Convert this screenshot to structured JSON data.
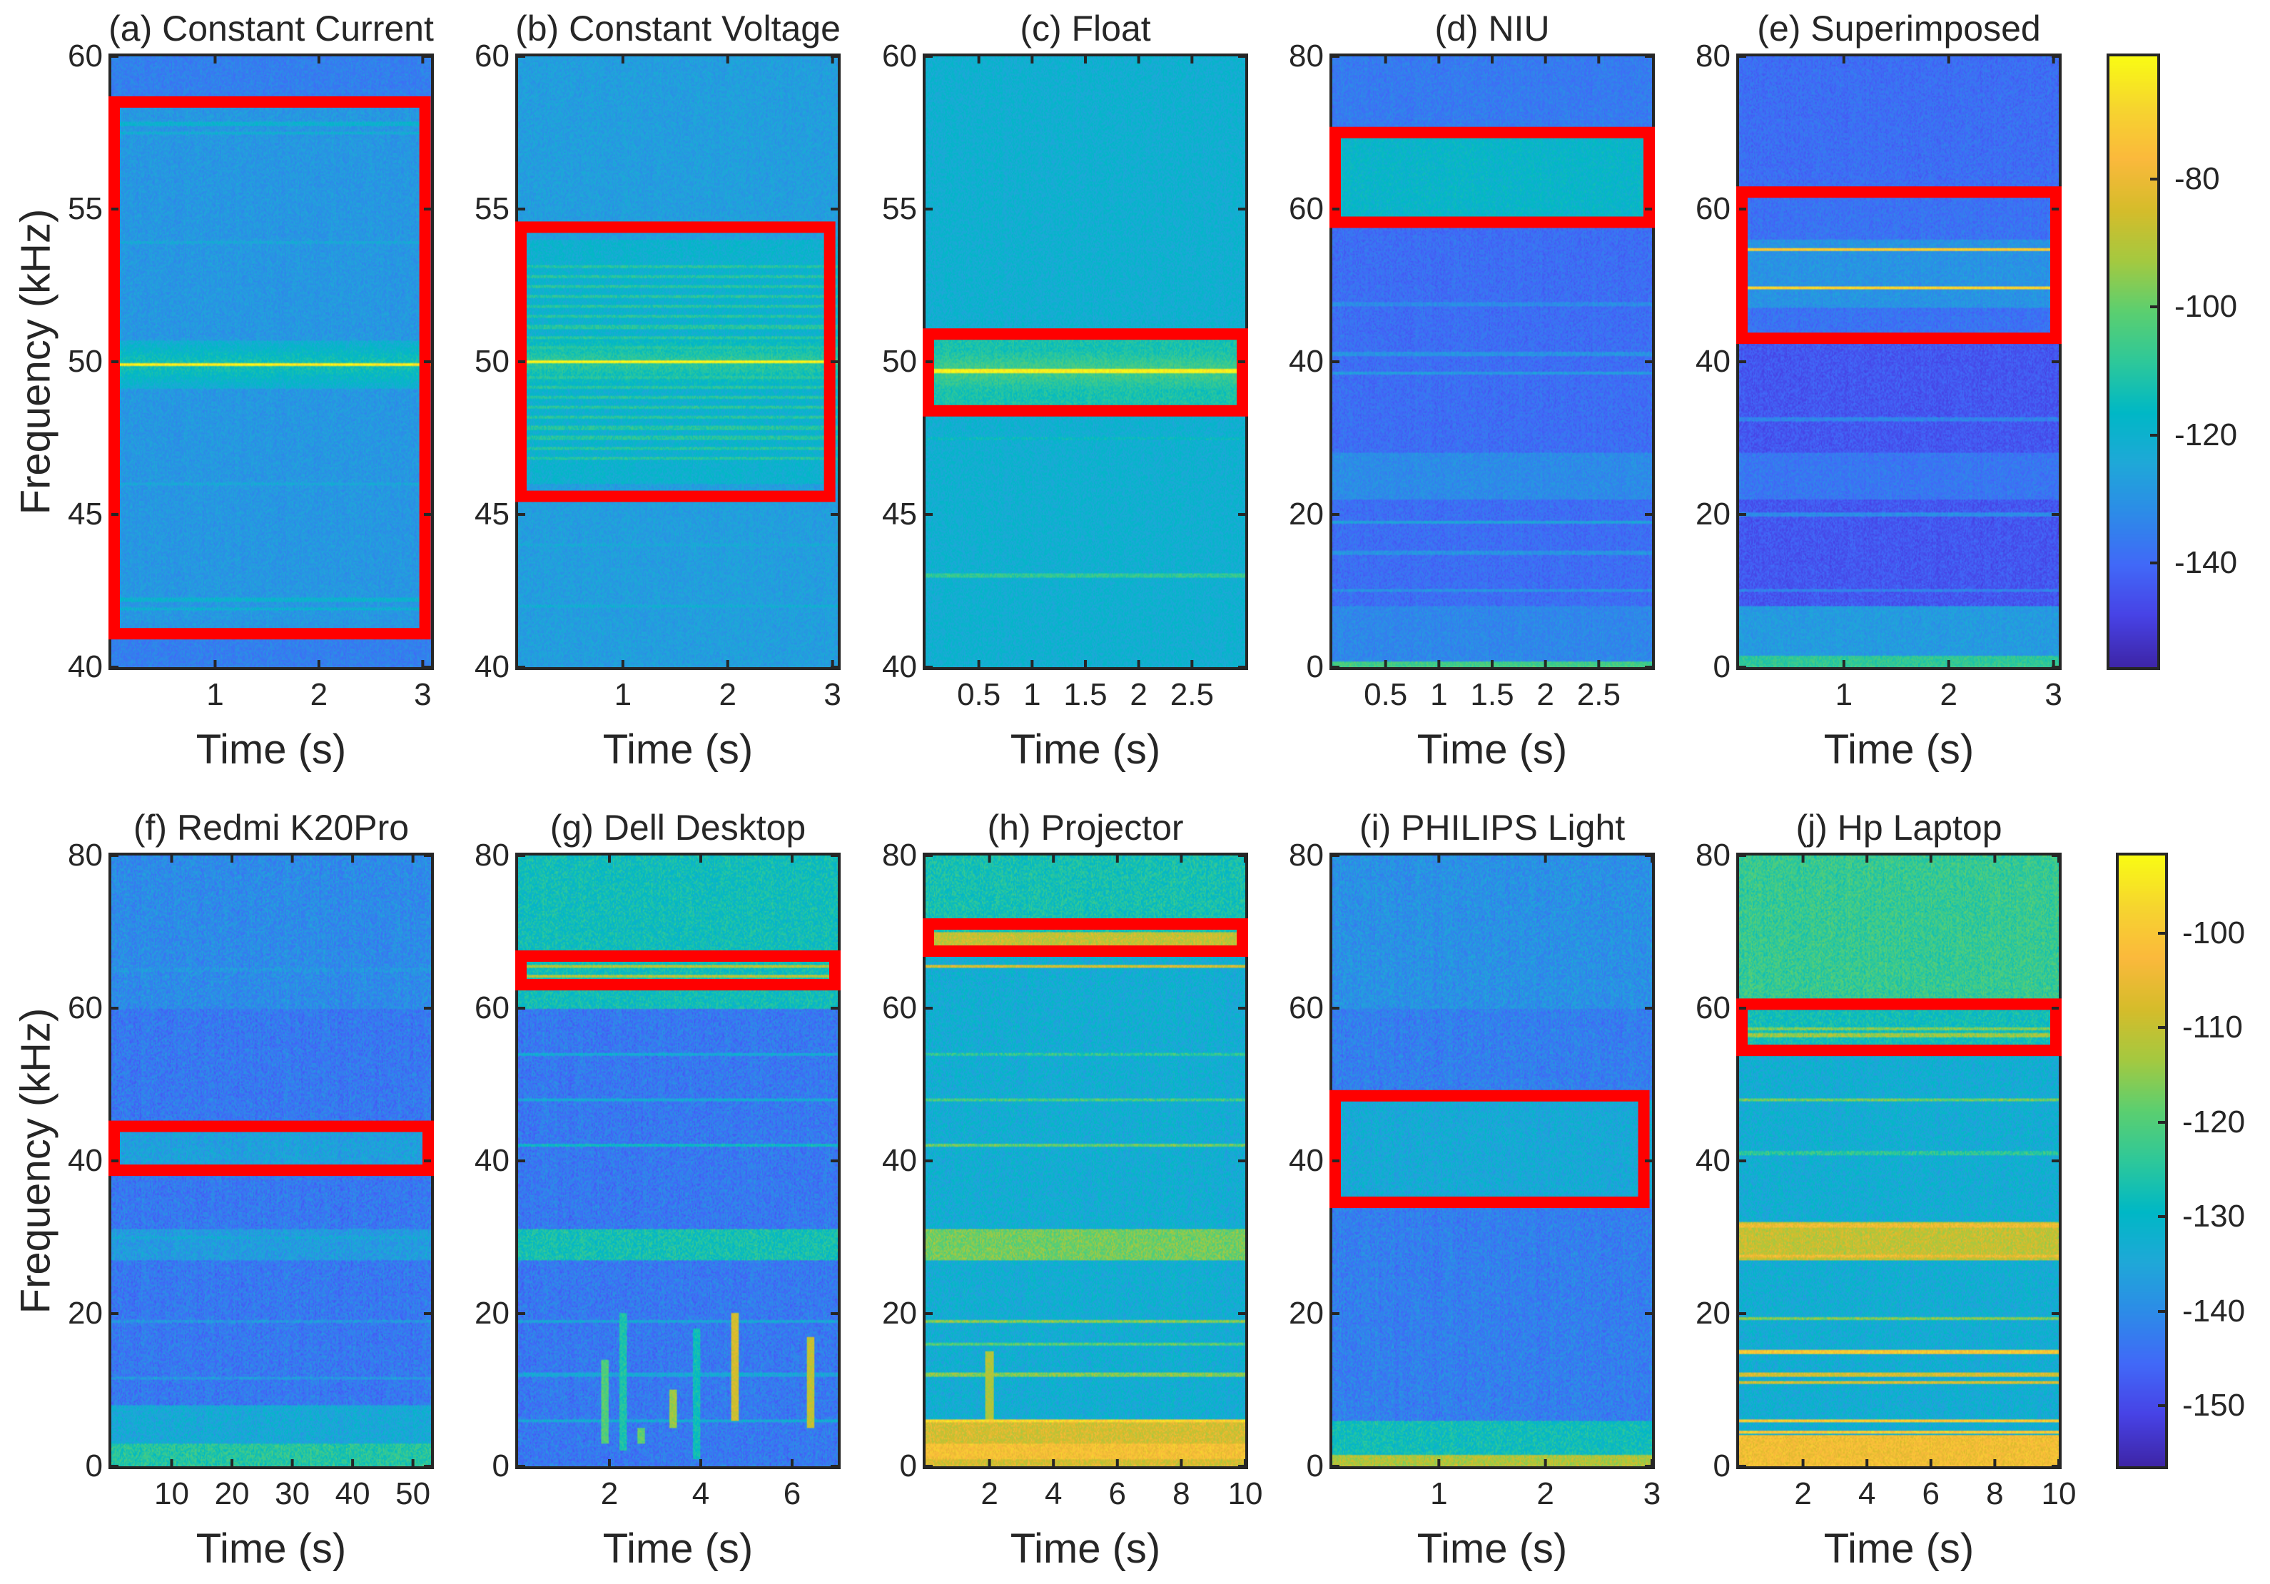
{
  "chart_data": [
    {
      "id": "a",
      "type": "heatmap",
      "title": "(a) Constant Current",
      "xlabel": "Time (s)",
      "ylabel": "Frequency (kHz)",
      "xlim": [
        0,
        3.08
      ],
      "ylim": [
        40,
        60
      ],
      "xticks": [
        1,
        2,
        3
      ],
      "yticks": [
        40,
        45,
        50,
        55,
        60
      ],
      "colorbar": 0,
      "highlight_box": {
        "t": [
          0,
          3.05
        ],
        "f": [
          41.0,
          58.6
        ]
      },
      "background_db": -135,
      "bands": [
        {
          "f": [
            41,
            58.5
          ],
          "db": -129
        }
      ],
      "tones": [
        {
          "f": 49.9,
          "db": -64,
          "glow": -112
        },
        {
          "f": 57.8,
          "db": -120
        },
        {
          "f": 57.5,
          "db": -122
        },
        {
          "f": 53.9,
          "db": -124
        },
        {
          "f": 46,
          "db": -124
        },
        {
          "f": 42.2,
          "db": -120
        },
        {
          "f": 41.9,
          "db": -121
        }
      ]
    },
    {
      "id": "b",
      "type": "heatmap",
      "title": "(b) Constant Voltage",
      "xlabel": "Time (s)",
      "ylabel": "",
      "xlim": [
        0,
        3.05
      ],
      "ylim": [
        40,
        60
      ],
      "xticks": [
        1,
        2,
        3
      ],
      "yticks": [
        40,
        45,
        50,
        55,
        60
      ],
      "colorbar": 0,
      "highlight_box": {
        "t": [
          0,
          3.0
        ],
        "f": [
          45.5,
          54.5
        ]
      },
      "background_db": -127,
      "bands": [
        {
          "f": [
            46,
            54
          ],
          "db": -120
        }
      ],
      "comb": {
        "f": [
          46.8,
          53.3
        ],
        "step": 0.33,
        "db": -110
      },
      "tones": [
        {
          "f": 50.0,
          "db": -62,
          "glow": -108
        },
        {
          "f": 42,
          "db": -122
        },
        {
          "f": 44,
          "db": -124
        }
      ]
    },
    {
      "id": "c",
      "type": "heatmap",
      "title": "(c) Float",
      "xlabel": "Time (s)",
      "ylabel": "",
      "xlim": [
        0,
        3
      ],
      "ylim": [
        40,
        60
      ],
      "xticks": [
        0.5,
        1,
        1.5,
        2,
        2.5
      ],
      "yticks": [
        40,
        45,
        50,
        55,
        60
      ],
      "colorbar": 0,
      "highlight_box": {
        "t": [
          0,
          3.0
        ],
        "f": [
          48.3,
          51.0
        ]
      },
      "background_db": -121,
      "bands": [
        {
          "f": [
            48.5,
            51
          ],
          "db": -112
        }
      ],
      "tones": [
        {
          "f": 49.7,
          "db": -63,
          "glow": -104
        },
        {
          "f": 43,
          "db": -108
        },
        {
          "f": 47.5,
          "db": -116
        }
      ]
    },
    {
      "id": "d",
      "type": "heatmap",
      "title": "(d) NIU",
      "xlabel": "Time (s)",
      "ylabel": "",
      "xlim": [
        0,
        3
      ],
      "ylim": [
        0,
        80
      ],
      "xticks": [
        0.5,
        1,
        1.5,
        2,
        2.5
      ],
      "yticks": [
        0,
        20,
        40,
        60,
        80
      ],
      "colorbar": 0,
      "highlight_box": {
        "t": [
          0,
          3.0
        ],
        "f": [
          57.9,
          70.4
        ]
      },
      "background_db": -139,
      "bands": [
        {
          "f": [
            58,
            69.5
          ],
          "db": -118
        },
        {
          "f": [
            22,
            28
          ],
          "db": -132
        },
        {
          "f": [
            0,
            8
          ],
          "db": -133
        },
        {
          "f": [
            0,
            0.8
          ],
          "db": -105
        },
        {
          "f": [
            70,
            80
          ],
          "db": -136
        }
      ],
      "tones": [
        {
          "f": 19,
          "db": -126
        },
        {
          "f": 15,
          "db": -130
        },
        {
          "f": 41,
          "db": -130
        },
        {
          "f": 38.5,
          "db": -128
        },
        {
          "f": 10,
          "db": -130
        },
        {
          "f": 47.5,
          "db": -132
        }
      ]
    },
    {
      "id": "e",
      "type": "heatmap",
      "title": "(e) Superimposed",
      "xlabel": "Time (s)",
      "ylabel": "",
      "xlim": [
        0,
        3.05
      ],
      "ylim": [
        0,
        80
      ],
      "xticks": [
        1,
        2,
        3
      ],
      "yticks": [
        0,
        20,
        40,
        60,
        80
      ],
      "colorbar": 0,
      "highlight_box": {
        "t": [
          0,
          3.05
        ],
        "f": [
          42.7,
          62.6
        ]
      },
      "background_db": -144,
      "bands": [
        {
          "f": [
            62,
            80
          ],
          "db": -139
        },
        {
          "f": [
            43,
            62
          ],
          "db": -138
        },
        {
          "f": [
            47,
            56
          ],
          "db": -130
        },
        {
          "f": [
            22,
            28
          ],
          "db": -137
        },
        {
          "f": [
            0,
            8
          ],
          "db": -128
        },
        {
          "f": [
            0,
            1.5
          ],
          "db": -108
        }
      ],
      "tones": [
        {
          "f": 54.7,
          "db": -72
        },
        {
          "f": 49.7,
          "db": -70
        },
        {
          "f": 32.5,
          "db": -134
        },
        {
          "f": 20,
          "db": -132
        },
        {
          "f": 10,
          "db": -134
        }
      ]
    },
    {
      "id": "f",
      "type": "heatmap",
      "title": "(f) Redmi K20Pro",
      "xlabel": "Time (s)",
      "ylabel": "Frequency (kHz)",
      "xlim": [
        0,
        53
      ],
      "ylim": [
        0,
        80
      ],
      "xticks": [
        10,
        20,
        30,
        40,
        50
      ],
      "yticks": [
        0,
        20,
        40,
        60,
        80
      ],
      "colorbar": 1,
      "highlight_box": {
        "t": [
          0,
          53
        ],
        "f": [
          38.4,
          44.9
        ]
      },
      "background_db": -143,
      "bands": [
        {
          "f": [
            60,
            80
          ],
          "db": -140
        },
        {
          "f": [
            39,
            44
          ],
          "db": -136
        },
        {
          "f": [
            27,
            31
          ],
          "db": -137
        },
        {
          "f": [
            0,
            8
          ],
          "db": -134
        },
        {
          "f": [
            0,
            3
          ],
          "db": -125
        }
      ],
      "tones": [
        {
          "f": 65,
          "db": -138
        },
        {
          "f": 30,
          "db": -134
        },
        {
          "f": 19,
          "db": -138
        },
        {
          "f": 11.5,
          "db": -138
        },
        {
          "f": 6,
          "db": -134
        }
      ]
    },
    {
      "id": "g",
      "type": "heatmap",
      "title": "(g) Dell Desktop",
      "xlabel": "Time (s)",
      "ylabel": "",
      "xlim": [
        0,
        7
      ],
      "ylim": [
        0,
        80
      ],
      "xticks": [
        2,
        4,
        6
      ],
      "yticks": [
        0,
        20,
        40,
        60,
        80
      ],
      "colorbar": 1,
      "highlight_box": {
        "t": [
          0,
          7
        ],
        "f": [
          62.7,
          67.2
        ]
      },
      "background_db": -143,
      "bands": [
        {
          "f": [
            60,
            80
          ],
          "db": -128
        },
        {
          "f": [
            27,
            31
          ],
          "db": -127
        },
        {
          "f": [
            0,
            2
          ],
          "db": -154
        },
        {
          "f": [
            2,
            27
          ],
          "db": -146
        }
      ],
      "tones": [
        {
          "f": 65.5,
          "db": -112
        },
        {
          "f": 64.2,
          "db": -112
        },
        {
          "f": 54,
          "db": -134
        },
        {
          "f": 48,
          "db": -134
        },
        {
          "f": 42,
          "db": -130
        },
        {
          "f": 19,
          "db": -135
        },
        {
          "f": 12,
          "db": -135
        },
        {
          "f": 6,
          "db": -134
        }
      ],
      "bursts": [
        {
          "t": 1.9,
          "f": [
            3,
            14
          ],
          "db": -120
        },
        {
          "t": 2.3,
          "f": [
            2,
            20
          ],
          "db": -126
        },
        {
          "t": 3.4,
          "f": [
            5,
            10
          ],
          "db": -114
        },
        {
          "t": 3.9,
          "f": [
            1,
            18
          ],
          "db": -128
        },
        {
          "t": 4.75,
          "f": [
            6,
            20
          ],
          "db": -108
        },
        {
          "t": 6.4,
          "f": [
            5,
            17
          ],
          "db": -110
        },
        {
          "t": 2.7,
          "f": [
            3,
            5
          ],
          "db": -118
        }
      ]
    },
    {
      "id": "h",
      "type": "heatmap",
      "title": "(h) Projector",
      "xlabel": "Time (s)",
      "ylabel": "",
      "xlim": [
        0,
        10
      ],
      "ylim": [
        0,
        80
      ],
      "xticks": [
        2,
        4,
        6,
        8,
        10
      ],
      "yticks": [
        0,
        20,
        40,
        60,
        80
      ],
      "colorbar": 1,
      "highlight_box": {
        "t": [
          0,
          10
        ],
        "f": [
          67.1,
          71.4
        ]
      },
      "background_db": -133,
      "bands": [
        {
          "f": [
            70,
            80
          ],
          "db": -127
        },
        {
          "f": [
            68,
            70
          ],
          "db": -110
        },
        {
          "f": [
            27,
            31
          ],
          "db": -117
        },
        {
          "f": [
            0,
            6
          ],
          "db": -108
        },
        {
          "f": [
            1,
            3
          ],
          "db": -102
        }
      ],
      "tones": [
        {
          "f": 65.5,
          "db": -108
        },
        {
          "f": 54,
          "db": -124
        },
        {
          "f": 48,
          "db": -122
        },
        {
          "f": 42,
          "db": -118
        },
        {
          "f": 19,
          "db": -116
        },
        {
          "f": 16,
          "db": -120
        },
        {
          "f": 12,
          "db": -116
        },
        {
          "f": 6,
          "db": -98
        }
      ],
      "bursts": [
        {
          "t": 2,
          "f": [
            4,
            15
          ],
          "db": -112
        }
      ]
    },
    {
      "id": "i",
      "type": "heatmap",
      "title": "(i) PHILIPS Light",
      "xlabel": "Time (s)",
      "ylabel": "",
      "xlim": [
        0,
        3
      ],
      "ylim": [
        0,
        80
      ],
      "xticks": [
        1,
        2,
        3
      ],
      "yticks": [
        0,
        20,
        40,
        60,
        80
      ],
      "colorbar": 1,
      "highlight_box": {
        "t": [
          0,
          2.95
        ],
        "f": [
          34.2,
          48.9
        ]
      },
      "background_db": -142,
      "bands": [
        {
          "f": [
            60,
            80
          ],
          "db": -139
        },
        {
          "f": [
            35,
            48
          ],
          "db": -134
        },
        {
          "f": [
            0,
            6
          ],
          "db": -128
        },
        {
          "f": [
            0,
            1.5
          ],
          "db": -112
        }
      ],
      "tones": []
    },
    {
      "id": "j",
      "type": "heatmap",
      "title": "(j) Hp Laptop",
      "xlabel": "Time (s)",
      "ylabel": "",
      "xlim": [
        0,
        10
      ],
      "ylim": [
        0,
        80
      ],
      "xticks": [
        2,
        4,
        6,
        8,
        10
      ],
      "yticks": [
        0,
        20,
        40,
        60,
        80
      ],
      "colorbar": 1,
      "highlight_box": {
        "t": [
          0,
          10
        ],
        "f": [
          54.1,
          60.9
        ]
      },
      "background_db": -133,
      "bands": [
        {
          "f": [
            60,
            80
          ],
          "db": -123
        },
        {
          "f": [
            54,
            60
          ],
          "db": -128
        },
        {
          "f": [
            27,
            32
          ],
          "db": -110
        },
        {
          "f": [
            0,
            4
          ],
          "db": -103
        }
      ],
      "tones": [
        {
          "f": 56.5,
          "db": -114
        },
        {
          "f": 57.3,
          "db": -116
        },
        {
          "f": 48,
          "db": -118
        },
        {
          "f": 41,
          "db": -124
        },
        {
          "f": 19.3,
          "db": -116
        },
        {
          "f": 15,
          "db": -100
        },
        {
          "f": 12,
          "db": -108
        },
        {
          "f": 11,
          "db": -108
        },
        {
          "f": 6,
          "db": -100
        },
        {
          "f": 4.5,
          "db": -100
        },
        {
          "f": 31.5,
          "db": -104
        },
        {
          "f": 27.5,
          "db": -104
        }
      ]
    }
  ],
  "colorbars": [
    {
      "range": [
        -156.3,
        -60.8
      ],
      "ticks": [
        -80,
        -100,
        -120,
        -140
      ]
    },
    {
      "range": [
        -156.4,
        -91.8
      ],
      "ticks": [
        -100,
        -110,
        -120,
        -130,
        -140,
        -150
      ]
    }
  ],
  "colormap": [
    "#3e26a8",
    "#4743e6",
    "#4169f8",
    "#2d8be8",
    "#1fa8d8",
    "#00b8c6",
    "#2ec89a",
    "#5ccf70",
    "#a5c940",
    "#d6bc2b",
    "#fbb93c",
    "#f6d52f",
    "#f9fb15"
  ],
  "highlight_color": "#ff0000"
}
